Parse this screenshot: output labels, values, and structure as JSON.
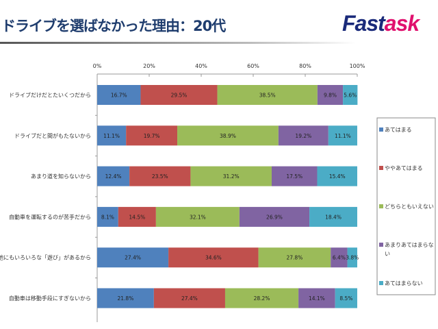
{
  "header": {
    "title": "ドライブを選ばなかった理由：20代",
    "logo_part1": "Fast",
    "logo_part2": "ask"
  },
  "chart_data": {
    "type": "bar",
    "orientation": "horizontal",
    "stacked": true,
    "percent": true,
    "xlim": [
      0,
      100
    ],
    "ticks": [
      "0%",
      "20%",
      "40%",
      "60%",
      "80%",
      "100%"
    ],
    "categories": [
      "ドライブだけだとたいくつだから",
      "ドライブだと間がもたないから",
      "あまり道を知らないから",
      "自動車を運転するのが苦手だから",
      "他にもいろいろな「遊び」があるから",
      "自動車は移動手段にすぎないから"
    ],
    "series": [
      {
        "name": "あてはまる",
        "color": "#4f81bd",
        "values": [
          16.7,
          11.1,
          12.4,
          8.1,
          27.4,
          21.8
        ]
      },
      {
        "name": "ややあてはまる",
        "color": "#c0504d",
        "values": [
          29.5,
          19.7,
          23.5,
          14.5,
          34.6,
          27.4
        ]
      },
      {
        "name": "どちらともいえない",
        "color": "#9bbb59",
        "values": [
          38.5,
          38.9,
          31.2,
          32.1,
          27.8,
          28.2
        ]
      },
      {
        "name": "あまりあてはまらない",
        "color": "#8064a2",
        "values": [
          9.8,
          19.2,
          17.5,
          26.9,
          6.4,
          14.1
        ]
      },
      {
        "name": "あてはまらない",
        "color": "#4bacc6",
        "values": [
          5.6,
          11.1,
          15.4,
          18.4,
          3.8,
          8.5
        ]
      }
    ],
    "legend": "right"
  }
}
